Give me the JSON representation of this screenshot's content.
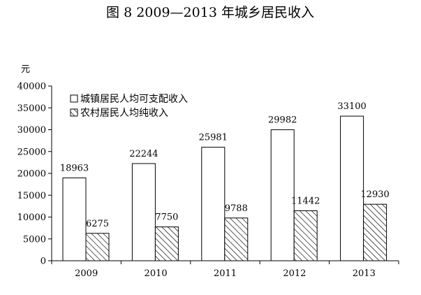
{
  "chart_data": {
    "type": "bar",
    "title": "图 8   2009—2013 年城乡居民收入",
    "ylabel": "元",
    "xlabel": "",
    "categories": [
      "2009",
      "2010",
      "2011",
      "2012",
      "2013"
    ],
    "series": [
      {
        "name": "城镇居民人均可支配收入",
        "values": [
          18963,
          22244,
          25981,
          29982,
          33100
        ],
        "pattern": "white"
      },
      {
        "name": "农村居民人均纯收入",
        "values": [
          6275,
          7750,
          9788,
          11442,
          12930
        ],
        "pattern": "hatched"
      }
    ],
    "ylim": [
      0,
      40000
    ],
    "yticks": [
      0,
      5000,
      10000,
      15000,
      20000,
      25000,
      30000,
      35000,
      40000
    ],
    "legend_position": "top-left",
    "grid": false
  }
}
